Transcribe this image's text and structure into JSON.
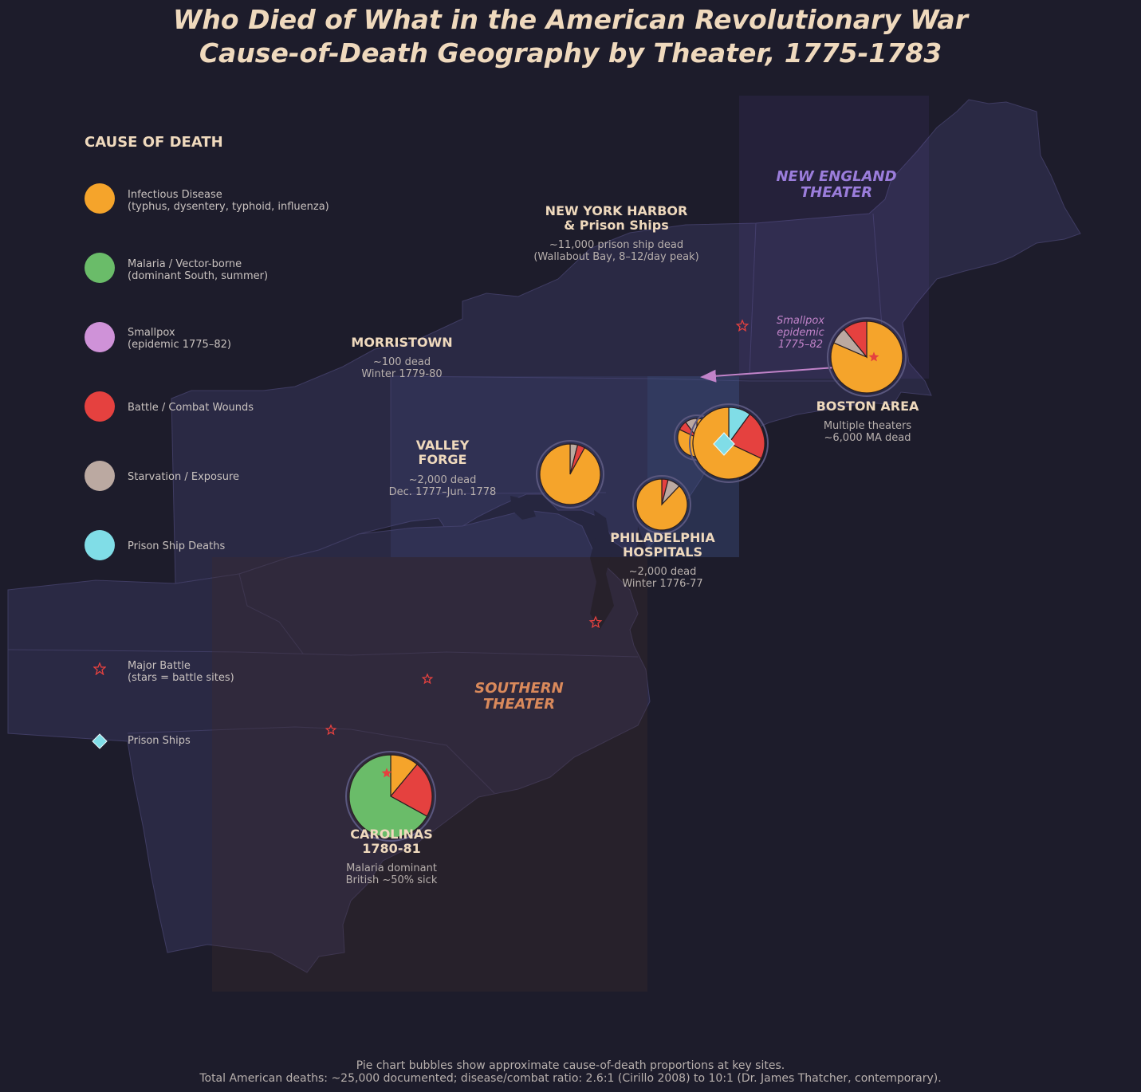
{
  "title": {
    "line1": "Who Died of What in the American Revolutionary War",
    "line2": "Cause-of-Death Geography by Theater, 1775-1783"
  },
  "colors": {
    "background": "#1d1c2b",
    "land": "#2a2944",
    "infectious": "#f5a42b",
    "malaria": "#6abc69",
    "smallpox": "#cf92d8",
    "battle": "#e5413f",
    "starvation": "#bba9a1",
    "prison": "#80dde7",
    "new_england": "#9b7ddb",
    "southern": "#d9895b"
  },
  "legend": {
    "title": "CAUSE OF DEATH",
    "items": [
      {
        "key": "infectious",
        "label": "Infectious Disease",
        "sub": "(typhus, dysentery, typhoid, influenza)",
        "color": "#f5a42b",
        "shape": "circle"
      },
      {
        "key": "malaria",
        "label": "Malaria / Vector-borne",
        "sub": "(dominant South, summer)",
        "color": "#6abc69",
        "shape": "circle"
      },
      {
        "key": "smallpox",
        "label": "Smallpox",
        "sub": "(epidemic 1775–82)",
        "color": "#cf92d8",
        "shape": "circle"
      },
      {
        "key": "battle",
        "label": "Battle / Combat Wounds",
        "sub": "",
        "color": "#e5413f",
        "shape": "circle"
      },
      {
        "key": "starvation",
        "label": "Starvation / Exposure",
        "sub": "",
        "color": "#bba9a1",
        "shape": "circle"
      },
      {
        "key": "prison",
        "label": "Prison Ship Deaths",
        "sub": "",
        "color": "#80dde7",
        "shape": "circle"
      },
      {
        "key": "battle_marker",
        "label": "Major Battle",
        "sub": "(stars = battle sites)",
        "color": "#e5413f",
        "shape": "star"
      },
      {
        "key": "prison_marker",
        "label": "Prison Ships",
        "sub": "",
        "color": "#80dde7",
        "shape": "diamond"
      }
    ]
  },
  "theaters": {
    "new_england": {
      "line1": "NEW ENGLAND",
      "line2": "THEATER"
    },
    "southern": {
      "line1": "SOUTHERN",
      "line2": "THEATER"
    }
  },
  "sites": {
    "ny_harbor": {
      "title1": "NEW YORK HARBOR",
      "title2": "& Prison Ships",
      "sub1": "~11,000 prison ship dead",
      "sub2": "(Wallabout Bay, 8–12/day peak)"
    },
    "morristown": {
      "title1": "MORRISTOWN",
      "title2": "",
      "sub1": "~100 dead",
      "sub2": "Winter 1779-80"
    },
    "valley_forge": {
      "title1": "VALLEY",
      "title2": "FORGE",
      "sub1": "~2,000 dead",
      "sub2": "Dec. 1777–Jun. 1778"
    },
    "philadelphia": {
      "title1": "PHILADELPHIA",
      "title2": "HOSPITALS",
      "sub1": "~2,000 dead",
      "sub2": "Winter 1776-77"
    },
    "boston": {
      "title1": "BOSTON AREA",
      "title2": "",
      "sub1": "Multiple theaters",
      "sub2": "~6,000 MA dead"
    },
    "carolinas": {
      "title1": "CAROLINAS",
      "title2": "1780-81",
      "sub1": "Malaria dominant",
      "sub2": "British ~50% sick"
    }
  },
  "smallpox_note": {
    "line1": "Smallpox",
    "line2": "epidemic",
    "line3": "1775–82"
  },
  "pies": [
    {
      "site": "Boston Area",
      "slices": [
        {
          "cause": "infectious",
          "value": 75
        },
        {
          "cause": "starvation",
          "value": 7
        },
        {
          "cause": "battle",
          "value": 10
        }
      ]
    },
    {
      "site": "New York Harbor",
      "slices": [
        {
          "cause": "prison",
          "value": 10
        },
        {
          "cause": "battle",
          "value": 22
        },
        {
          "cause": "infectious",
          "value": 68
        }
      ]
    },
    {
      "site": "Morristown",
      "slices": [
        {
          "cause": "infectious",
          "value": 82
        },
        {
          "cause": "battle",
          "value": 8
        },
        {
          "cause": "starvation",
          "value": 10
        }
      ]
    },
    {
      "site": "Valley Forge",
      "slices": [
        {
          "cause": "starvation",
          "value": 4
        },
        {
          "cause": "battle",
          "value": 4
        },
        {
          "cause": "infectious",
          "value": 92
        }
      ]
    },
    {
      "site": "Philadelphia Hospitals",
      "slices": [
        {
          "cause": "battle",
          "value": 4
        },
        {
          "cause": "starvation",
          "value": 8
        },
        {
          "cause": "infectious",
          "value": 88
        }
      ]
    },
    {
      "site": "Carolinas",
      "slices": [
        {
          "cause": "infectious",
          "value": 11
        },
        {
          "cause": "battle",
          "value": 22
        },
        {
          "cause": "malaria",
          "value": 67
        }
      ]
    }
  ],
  "footer": {
    "line1": "Pie chart bubbles show approximate cause-of-death proportions at key sites.",
    "line2": "Total American deaths: ~25,000 documented; disease/combat ratio: 2.6:1 (Cirillo 2008) to 10:1 (Dr. James Thatcher, contemporary)."
  }
}
